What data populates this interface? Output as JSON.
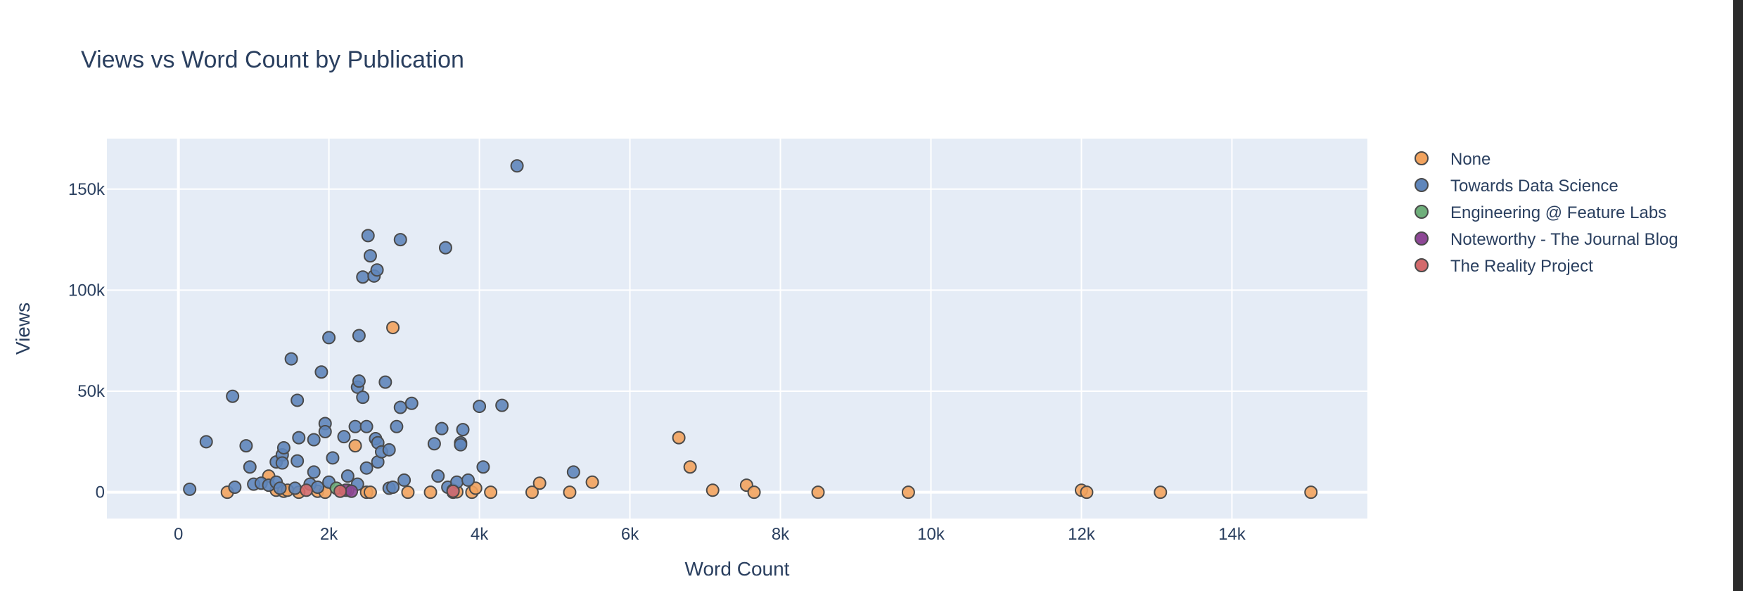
{
  "chart_data": {
    "type": "scatter",
    "title": "Views vs Word Count by Publication",
    "xlabel": "Word Count",
    "ylabel": "Views",
    "xlim": [
      -950,
      15800
    ],
    "ylim": [
      -13000,
      175000
    ],
    "x_ticks": [
      0,
      2000,
      4000,
      6000,
      8000,
      10000,
      12000,
      14000
    ],
    "x_tick_labels": [
      "0",
      "2k",
      "4k",
      "6k",
      "8k",
      "10k",
      "12k",
      "14k"
    ],
    "y_ticks": [
      0,
      50000,
      100000,
      150000
    ],
    "y_tick_labels": [
      "0",
      "50k",
      "100k",
      "150k"
    ],
    "grid": true,
    "legend_position": "right",
    "series": [
      {
        "name": "None",
        "color": "#F2A35E",
        "points": [
          [
            650,
            0
          ],
          [
            1200,
            8000
          ],
          [
            1300,
            1000
          ],
          [
            1400,
            500
          ],
          [
            1450,
            1000
          ],
          [
            1600,
            0
          ],
          [
            1850,
            500
          ],
          [
            1950,
            0
          ],
          [
            2250,
            1000
          ],
          [
            2350,
            23000
          ],
          [
            2500,
            0
          ],
          [
            2550,
            0
          ],
          [
            2850,
            81500
          ],
          [
            3050,
            0
          ],
          [
            3350,
            0
          ],
          [
            3650,
            0
          ],
          [
            3700,
            200
          ],
          [
            3900,
            0
          ],
          [
            3950,
            2000
          ],
          [
            4150,
            0
          ],
          [
            4700,
            0
          ],
          [
            4800,
            4500
          ],
          [
            5200,
            0
          ],
          [
            5500,
            5000
          ],
          [
            6650,
            27000
          ],
          [
            6800,
            12500
          ],
          [
            7100,
            1000
          ],
          [
            7550,
            3500
          ],
          [
            7650,
            0
          ],
          [
            8500,
            0
          ],
          [
            9700,
            0
          ],
          [
            12000,
            1000
          ],
          [
            12070,
            0
          ],
          [
            13050,
            0
          ],
          [
            15050,
            0
          ]
        ]
      },
      {
        "name": "Towards Data Science",
        "color": "#5F86BB",
        "points": [
          [
            150,
            1500
          ],
          [
            370,
            25000
          ],
          [
            720,
            47500
          ],
          [
            750,
            2500
          ],
          [
            900,
            23000
          ],
          [
            950,
            12500
          ],
          [
            1000,
            4000
          ],
          [
            1100,
            4500
          ],
          [
            1200,
            3500
          ],
          [
            1300,
            15000
          ],
          [
            1300,
            5000
          ],
          [
            1350,
            2000
          ],
          [
            1380,
            18500
          ],
          [
            1380,
            14500
          ],
          [
            1400,
            22000
          ],
          [
            1500,
            66000
          ],
          [
            1580,
            45500
          ],
          [
            1600,
            27000
          ],
          [
            1580,
            15500
          ],
          [
            1550,
            2000
          ],
          [
            1750,
            4000
          ],
          [
            1800,
            10000
          ],
          [
            1800,
            26000
          ],
          [
            1850,
            2500
          ],
          [
            1900,
            59500
          ],
          [
            1950,
            34000
          ],
          [
            1950,
            30000
          ],
          [
            2000,
            76500
          ],
          [
            2000,
            5000
          ],
          [
            2050,
            17000
          ],
          [
            2200,
            27500
          ],
          [
            2250,
            8000
          ],
          [
            2350,
            32500
          ],
          [
            2380,
            4000
          ],
          [
            2380,
            52000
          ],
          [
            2400,
            55000
          ],
          [
            2400,
            77500
          ],
          [
            2450,
            47000
          ],
          [
            2450,
            106500
          ],
          [
            2500,
            12000
          ],
          [
            2500,
            32500
          ],
          [
            2520,
            127000
          ],
          [
            2550,
            117000
          ],
          [
            2600,
            107000
          ],
          [
            2620,
            26500
          ],
          [
            2640,
            110000
          ],
          [
            2650,
            15000
          ],
          [
            2650,
            24500
          ],
          [
            2700,
            20000
          ],
          [
            2750,
            54500
          ],
          [
            2800,
            21000
          ],
          [
            2800,
            2000
          ],
          [
            2850,
            2500
          ],
          [
            2900,
            32500
          ],
          [
            2950,
            125000
          ],
          [
            2950,
            42000
          ],
          [
            3000,
            6000
          ],
          [
            3100,
            44000
          ],
          [
            3400,
            24000
          ],
          [
            3450,
            8000
          ],
          [
            3500,
            31500
          ],
          [
            3550,
            121000
          ],
          [
            3580,
            2500
          ],
          [
            3650,
            1000
          ],
          [
            3700,
            5000
          ],
          [
            3750,
            24500
          ],
          [
            3750,
            23500
          ],
          [
            3780,
            31000
          ],
          [
            3850,
            6000
          ],
          [
            4000,
            42500
          ],
          [
            4050,
            12500
          ],
          [
            4300,
            43000
          ],
          [
            4500,
            161500
          ],
          [
            5250,
            10000
          ]
        ]
      },
      {
        "name": "Engineering @ Feature Labs",
        "color": "#6FAF7B",
        "points": [
          [
            2100,
            2000
          ]
        ]
      },
      {
        "name": "Noteworthy - The Journal Blog",
        "color": "#8E4796",
        "points": [
          [
            2220,
            1000
          ],
          [
            2300,
            500
          ]
        ]
      },
      {
        "name": "The Reality Project",
        "color": "#D36A6C",
        "points": [
          [
            1700,
            1000
          ],
          [
            2150,
            500
          ],
          [
            3650,
            500
          ]
        ]
      }
    ]
  }
}
